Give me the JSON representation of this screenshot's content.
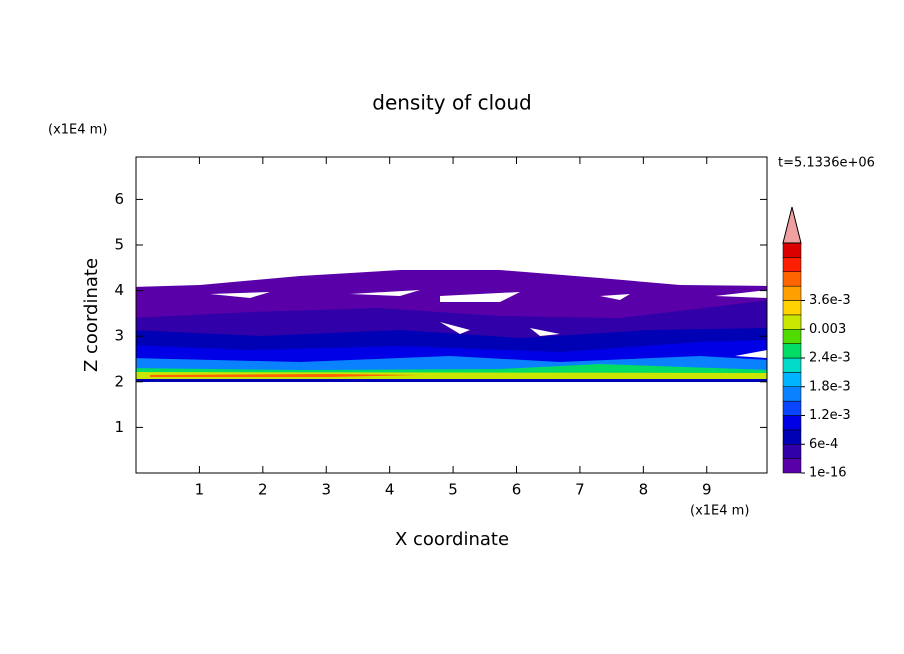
{
  "chart_data": {
    "type": "contour",
    "title": "density of cloud",
    "x_label": "X coordinate",
    "y_label": "Z coordinate",
    "x_unit": "(x1E4 m)",
    "y_unit": "(x1E4 m)",
    "time_label": "t=5.1336e+06",
    "xlim": [
      0,
      9.95
    ],
    "ylim": [
      0,
      6.93
    ],
    "xticks": [
      1,
      2,
      3,
      4,
      5,
      6,
      7,
      8,
      9
    ],
    "yticks": [
      1,
      2,
      3,
      4,
      5,
      6
    ],
    "colorbar": {
      "ticks": [
        1e-16,
        {
          "value": 0.0006,
          "label": "6e-4"
        },
        {
          "value": 0.0012,
          "label": "1.2e-3"
        },
        {
          "value": 0.0018,
          "label": "1.8e-3"
        },
        {
          "value": 0.0024,
          "label": "2.4e-3"
        },
        0.003,
        {
          "value": 0.0036,
          "label": "3.6e-3"
        }
      ],
      "colors": [
        "#5a00a8",
        "#3200a8",
        "#0000b4",
        "#0000e6",
        "#0a46ff",
        "#0a82ff",
        "#00b4ff",
        "#00dcc8",
        "#00dc64",
        "#50dc00",
        "#c8e600",
        "#ffd200",
        "#ffa000",
        "#ff6400",
        "#ff1e00",
        "#dc0000"
      ],
      "extend_color": "#f0a0a0"
    }
  }
}
